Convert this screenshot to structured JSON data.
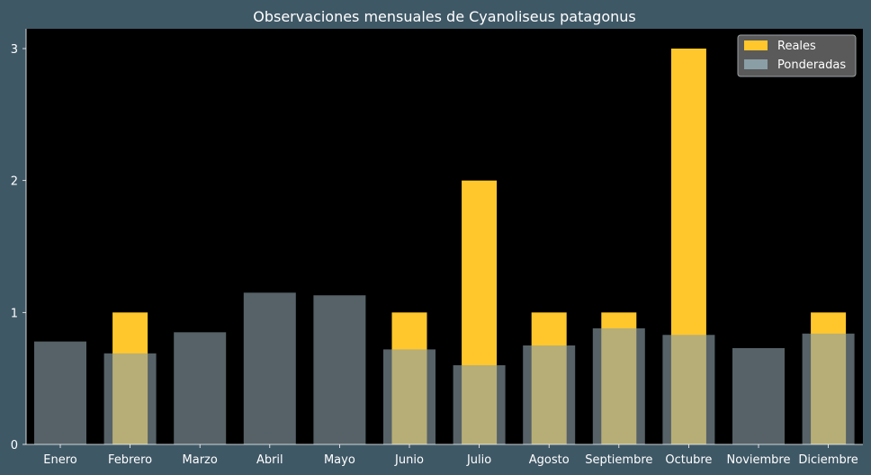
{
  "chart_data": {
    "type": "bar",
    "title": "Observaciones mensuales de Cyanoliseus patagonus",
    "xlabel": "",
    "ylabel": "",
    "categories": [
      "Enero",
      "Febrero",
      "Marzo",
      "Abril",
      "Mayo",
      "Junio",
      "Julio",
      "Agosto",
      "Septiembre",
      "Octubre",
      "Noviembre",
      "Diciembre"
    ],
    "ylim": [
      0,
      3.15
    ],
    "yticks": [
      0,
      1,
      2,
      3
    ],
    "grid": false,
    "legend_position": "top-right",
    "series": [
      {
        "name": "Reales",
        "color": "#ffc72c",
        "values": [
          0,
          1,
          0,
          0,
          0,
          1,
          2,
          1,
          1,
          3,
          0,
          1
        ]
      },
      {
        "name": "Ponderadas",
        "color": "#8a9ea6",
        "values": [
          0.78,
          0.69,
          0.85,
          1.15,
          1.13,
          0.72,
          0.6,
          0.75,
          0.88,
          0.83,
          0.73,
          0.84
        ]
      }
    ],
    "colors": {
      "background": "#3f5866",
      "plot_background": "#000000",
      "text": "#ffffff",
      "overlap": "#d4d08e",
      "legend_background": "#5a5a5a"
    }
  }
}
